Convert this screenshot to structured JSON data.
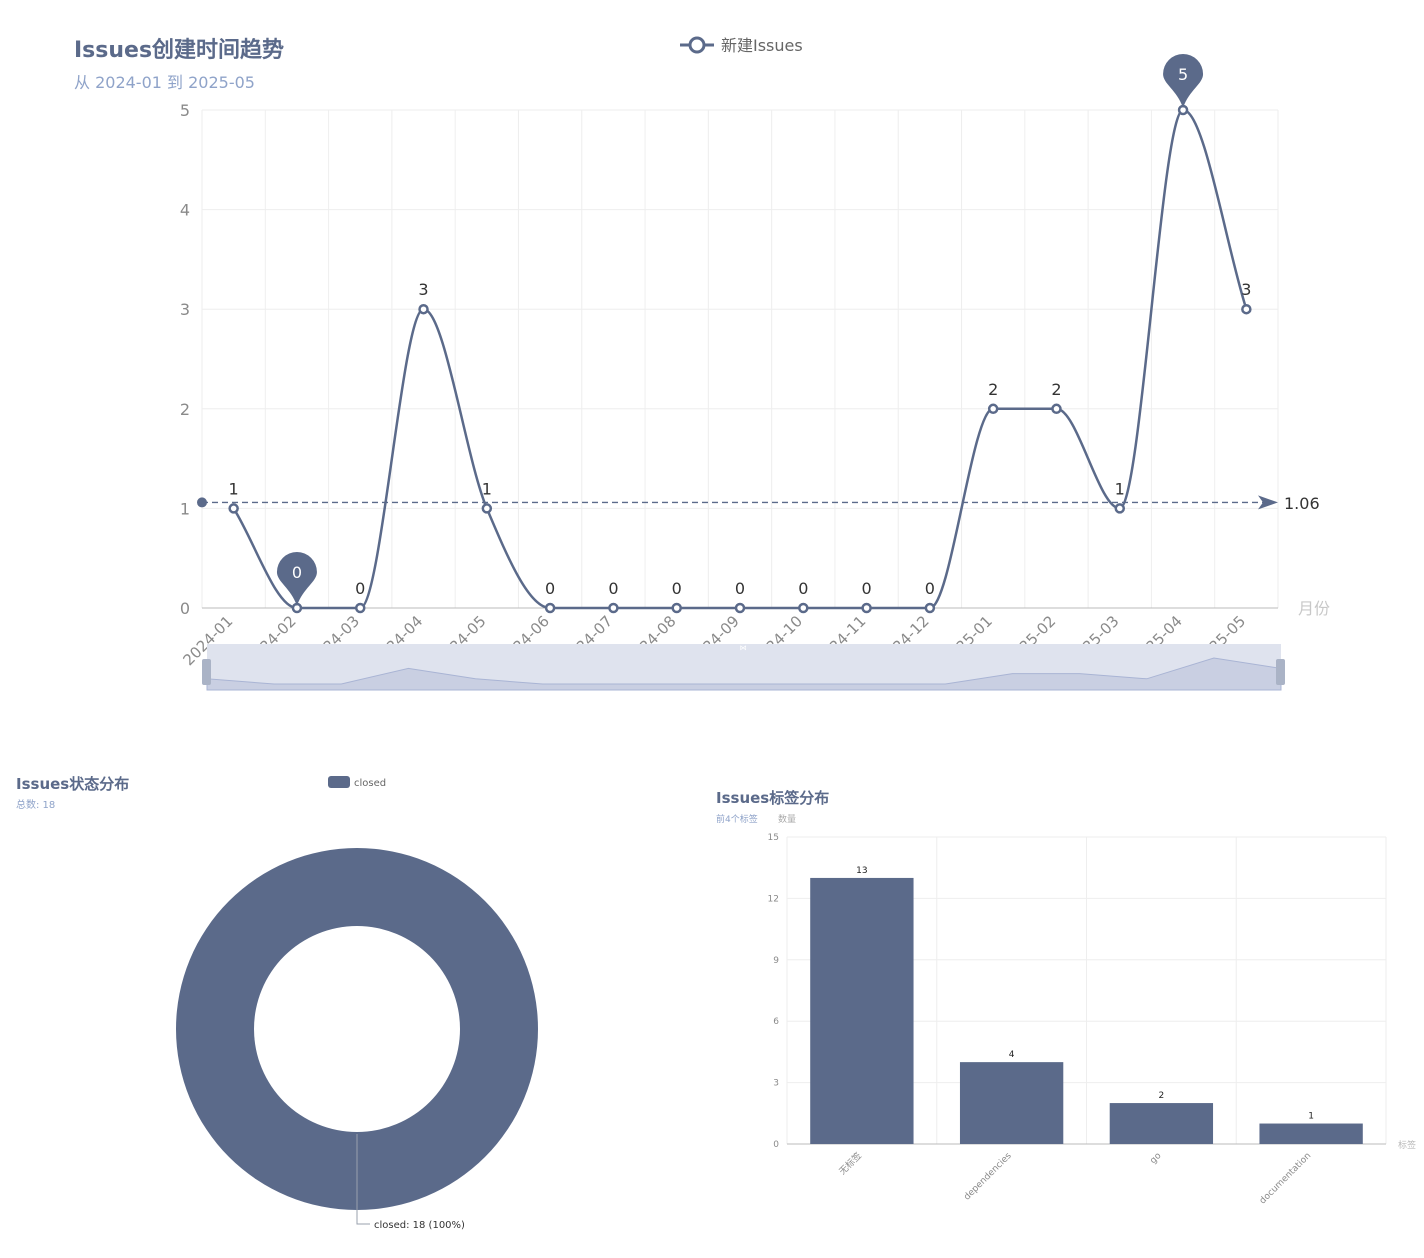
{
  "colors": {
    "primary": "#5b6a8a",
    "subtitle": "#8fa3c9",
    "grid": "#eeeeee",
    "axis": "#8a8a8a",
    "slider_bg": "#dfe3ee"
  },
  "trend": {
    "title": "Issues创建时间趋势",
    "subtitle": "从 2024-01 到 2025-05",
    "legend": "新建Issues",
    "xlabel": "月份",
    "average_label": "1.06"
  },
  "status": {
    "title": "Issues状态分布",
    "subtitle": "总数: 18",
    "legend": "closed",
    "slice_label": "closed: 18 (100%)"
  },
  "labels": {
    "title": "Issues标签分布",
    "subtitle": "前4个标签",
    "ylabel": "数量",
    "xlabel": "标签"
  },
  "chart_data": [
    {
      "type": "line",
      "title": "Issues创建时间趋势",
      "subtitle": "从 2024-01 到 2025-05",
      "xlabel": "月份",
      "ylabel": "",
      "categories": [
        "2024-01",
        "2024-02",
        "2024-03",
        "2024-04",
        "2024-05",
        "2024-06",
        "2024-07",
        "2024-08",
        "2024-09",
        "2024-10",
        "2024-11",
        "2024-12",
        "2025-01",
        "2025-02",
        "2025-03",
        "2025-04",
        "2025-05"
      ],
      "series": [
        {
          "name": "新建Issues",
          "values": [
            1,
            0,
            0,
            3,
            1,
            0,
            0,
            0,
            0,
            0,
            0,
            0,
            2,
            2,
            1,
            5,
            3
          ]
        }
      ],
      "ylim": [
        0,
        5
      ],
      "yticks": [
        0,
        1,
        2,
        3,
        4,
        5
      ],
      "markers": {
        "max": {
          "category": "2025-04",
          "value": 5
        },
        "min": {
          "category": "2024-02",
          "value": 0
        },
        "average": 1.06
      },
      "smooth": true,
      "grid": true,
      "legend_position": "top-center",
      "data_zoom": true
    },
    {
      "type": "pie",
      "title": "Issues状态分布",
      "subtitle": "总数: 18",
      "donut": true,
      "slices": [
        {
          "name": "closed",
          "value": 18,
          "percent": 100
        }
      ],
      "legend_position": "top-center"
    },
    {
      "type": "bar",
      "title": "Issues标签分布",
      "subtitle": "前4个标签",
      "xlabel": "标签",
      "ylabel": "数量",
      "categories": [
        "无标签",
        "dependencies",
        "go",
        "documentation"
      ],
      "values": [
        13,
        4,
        2,
        1
      ],
      "ylim": [
        0,
        15
      ],
      "yticks": [
        0,
        3,
        6,
        9,
        12,
        15
      ],
      "grid": true
    }
  ]
}
